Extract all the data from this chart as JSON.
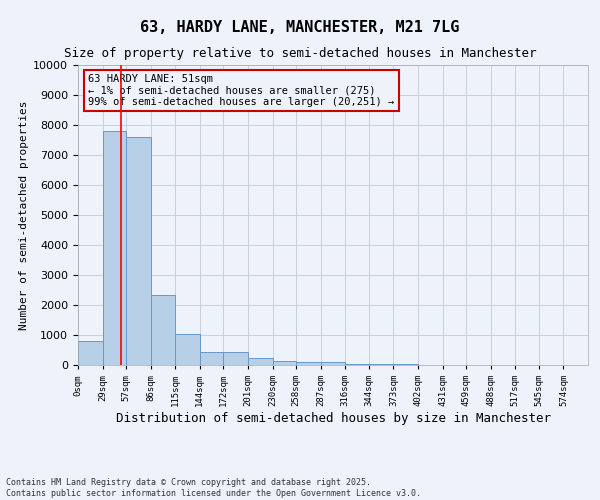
{
  "title": "63, HARDY LANE, MANCHESTER, M21 7LG",
  "subtitle": "Size of property relative to semi-detached houses in Manchester",
  "xlabel": "Distribution of semi-detached houses by size in Manchester",
  "ylabel": "Number of semi-detached properties",
  "footer_line1": "Contains HM Land Registry data © Crown copyright and database right 2025.",
  "footer_line2": "Contains public sector information licensed under the Open Government Licence v3.0.",
  "annotation_line1": "63 HARDY LANE: 51sqm",
  "annotation_line2": "← 1% of semi-detached houses are smaller (275)",
  "annotation_line3": "99% of semi-detached houses are larger (20,251) →",
  "bar_values": [
    800,
    7800,
    7600,
    2350,
    1050,
    450,
    450,
    250,
    150,
    100,
    100,
    50,
    30,
    20,
    15,
    10,
    8,
    5,
    3,
    2
  ],
  "bin_edges": [
    0,
    29,
    57,
    86,
    115,
    144,
    172,
    201,
    230,
    258,
    287,
    316,
    344,
    373,
    402,
    431,
    459,
    488,
    517,
    545,
    574
  ],
  "tick_labels": [
    "0sqm",
    "29sqm",
    "57sqm",
    "86sqm",
    "115sqm",
    "144sqm",
    "172sqm",
    "201sqm",
    "230sqm",
    "258sqm",
    "287sqm",
    "316sqm",
    "344sqm",
    "373sqm",
    "402sqm",
    "431sqm",
    "459sqm",
    "488sqm",
    "517sqm",
    "545sqm",
    "574sqm"
  ],
  "bar_color": "#b8cfe8",
  "bar_edge_color": "#6699cc",
  "red_line_x": 51,
  "ylim": [
    0,
    10000
  ],
  "yticks": [
    0,
    1000,
    2000,
    3000,
    4000,
    5000,
    6000,
    7000,
    8000,
    9000,
    10000
  ],
  "bg_color": "#eef2fa",
  "grid_color": "#c8d0e0",
  "annotation_box_color": "#cc0000",
  "title_fontsize": 11,
  "subtitle_fontsize": 9,
  "ann_fontsize": 7.5,
  "footer_fontsize": 6,
  "ylabel_fontsize": 8,
  "xlabel_fontsize": 9
}
